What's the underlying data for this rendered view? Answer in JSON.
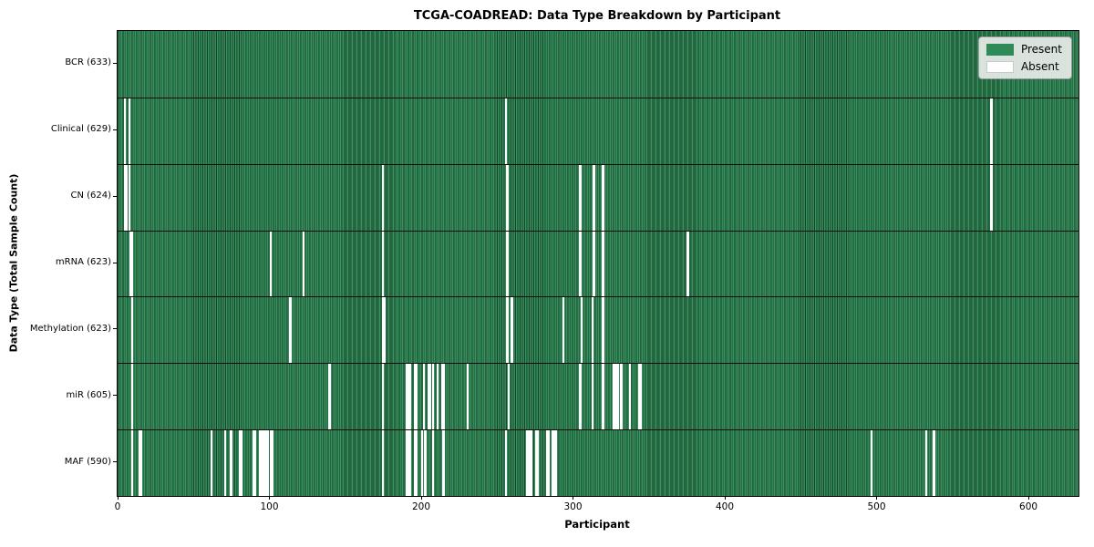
{
  "chart_data": {
    "type": "heatmap",
    "title": "TCGA-COADREAD: Data Type Breakdown by Participant",
    "xlabel": "Participant",
    "ylabel": "Data Type (Total Sample Count)",
    "n_participants": 633,
    "x_ticks": [
      0,
      100,
      200,
      300,
      400,
      500,
      600
    ],
    "legend": [
      {
        "label": "Present",
        "state": "present"
      },
      {
        "label": "Absent",
        "state": "absent"
      }
    ],
    "colors": {
      "present": "#2e8b57",
      "present_light": "#449a68",
      "gap": "#16432a",
      "absent": "#ffffff"
    },
    "rows": [
      {
        "name": "BCR",
        "label": "BCR (633)",
        "total": 633,
        "absent_participants": []
      },
      {
        "name": "Clinical",
        "label": "Clinical (629)",
        "total": 629,
        "absent_participants": [
          4,
          7,
          255,
          575
        ]
      },
      {
        "name": "CN",
        "label": "CN (624)",
        "total": 624,
        "absent_participants": [
          4,
          5,
          7,
          174,
          256,
          304,
          313,
          319,
          575
        ]
      },
      {
        "name": "mRNA",
        "label": "mRNA (623)",
        "total": 623,
        "absent_participants": [
          8,
          9,
          100,
          122,
          174,
          256,
          304,
          313,
          319,
          375
        ]
      },
      {
        "name": "Methylation",
        "label": "Methylation (623)",
        "total": 623,
        "absent_participants": [
          9,
          113,
          174,
          175,
          256,
          259,
          293,
          305,
          312,
          319
        ]
      },
      {
        "name": "miR",
        "label": "miR (605)",
        "total": 605,
        "absent_participants": [
          9,
          139,
          174,
          190,
          191,
          192,
          195,
          196,
          201,
          204,
          205,
          207,
          210,
          213,
          214,
          230,
          257,
          304,
          312,
          319,
          326,
          327,
          328,
          329,
          331,
          337,
          343,
          344
        ]
      },
      {
        "name": "MAF",
        "label": "MAF (590)",
        "total": 590,
        "absent_participants": [
          9,
          14,
          15,
          61,
          70,
          74,
          80,
          81,
          89,
          90,
          93,
          94,
          95,
          96,
          97,
          98,
          100,
          101,
          174,
          190,
          191,
          192,
          195,
          196,
          200,
          202,
          207,
          214,
          255,
          269,
          270,
          271,
          272,
          275,
          276,
          282,
          283,
          286,
          287,
          288,
          496,
          532,
          537
        ]
      }
    ]
  }
}
